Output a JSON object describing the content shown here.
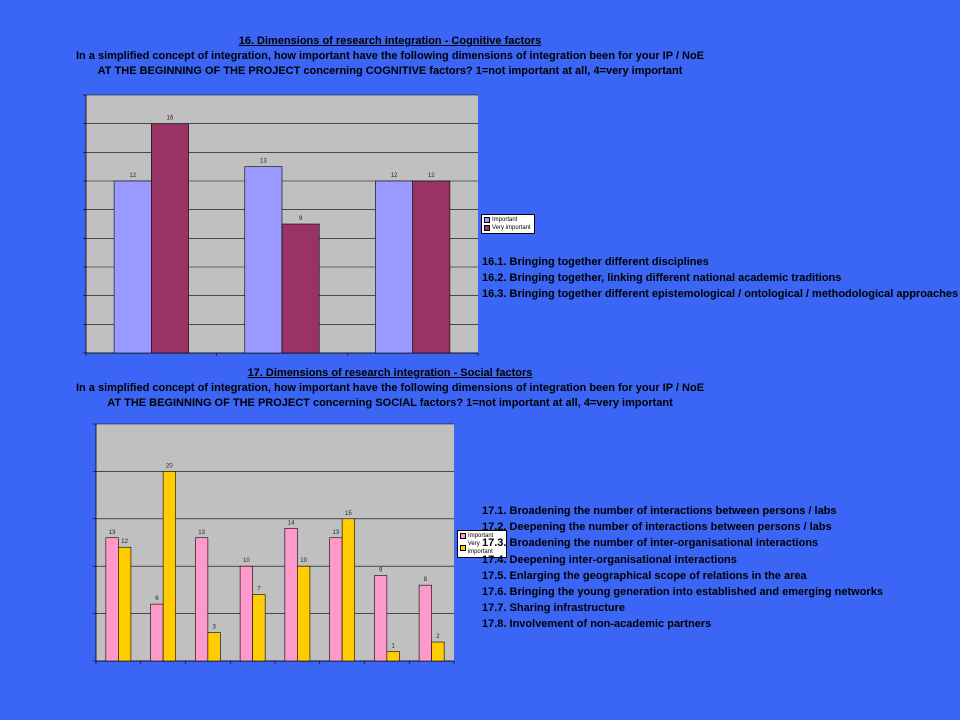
{
  "section1": {
    "title": "16. Dimensions of research integration - Cognitive factors",
    "line2": "In a simplified concept of integration, how important have the following dimensions of integration been for your IP / NoE",
    "line3": "AT THE BEGINNING OF THE PROJECT concerning COGNITIVE factors? 1=not important at all, 4=very important",
    "notes": [
      "16.1. Bringing together different disciplines",
      "16.2. Bringing together, linking different national academic traditions",
      "16.3. Bringing together different epistemological / ontological / methodological approaches"
    ]
  },
  "section2": {
    "title": "17. Dimensions of research integration - Social factors",
    "line2": "In a simplified concept of integration, how important have the following dimensions of integration been for your IP / NoE",
    "line3": "AT THE BEGINNING OF THE PROJECT concerning SOCIAL factors? 1=not important at all, 4=very important",
    "notes": [
      "17.1. Broadening the number of interactions between persons / labs",
      "17.2. Deepening the number of interactions between persons / labs",
      "17.3. Broadening the number of inter-organisational interactions",
      "17.4. Deepening inter-organisational interactions",
      "17.5. Enlarging the geographical scope of relations in the area",
      "17.6. Bringing the young generation into established and emerging networks",
      "17.7. Sharing infrastructure",
      "17.8. Involvement of non-academic partners"
    ]
  },
  "colors": {
    "background": "#3b66f5",
    "plot_bg": "#c0c0c0",
    "important_1": "#9999ff",
    "very_important_1": "#993366",
    "important_2": "#ff99cc",
    "very_important_2": "#ffcc00"
  },
  "chart_data": [
    {
      "type": "bar",
      "categories": [
        "",
        "",
        ""
      ],
      "series": [
        {
          "name": "Important",
          "values": [
            12,
            13,
            12
          ]
        },
        {
          "name": "Very important",
          "values": [
            16,
            9,
            12
          ]
        }
      ],
      "ylim": [
        0,
        18
      ],
      "grid": true,
      "legend": "right"
    },
    {
      "type": "bar",
      "categories": [
        "",
        "",
        "",
        "",
        "",
        "",
        "",
        ""
      ],
      "series": [
        {
          "name": "Important",
          "values": [
            13,
            6,
            13,
            10,
            14,
            13,
            9,
            8
          ]
        },
        {
          "name": "Very important",
          "values": [
            12,
            20,
            3,
            7,
            10,
            15,
            1,
            2
          ]
        }
      ],
      "ylim": [
        0,
        25
      ],
      "grid": true,
      "legend": "right"
    }
  ]
}
